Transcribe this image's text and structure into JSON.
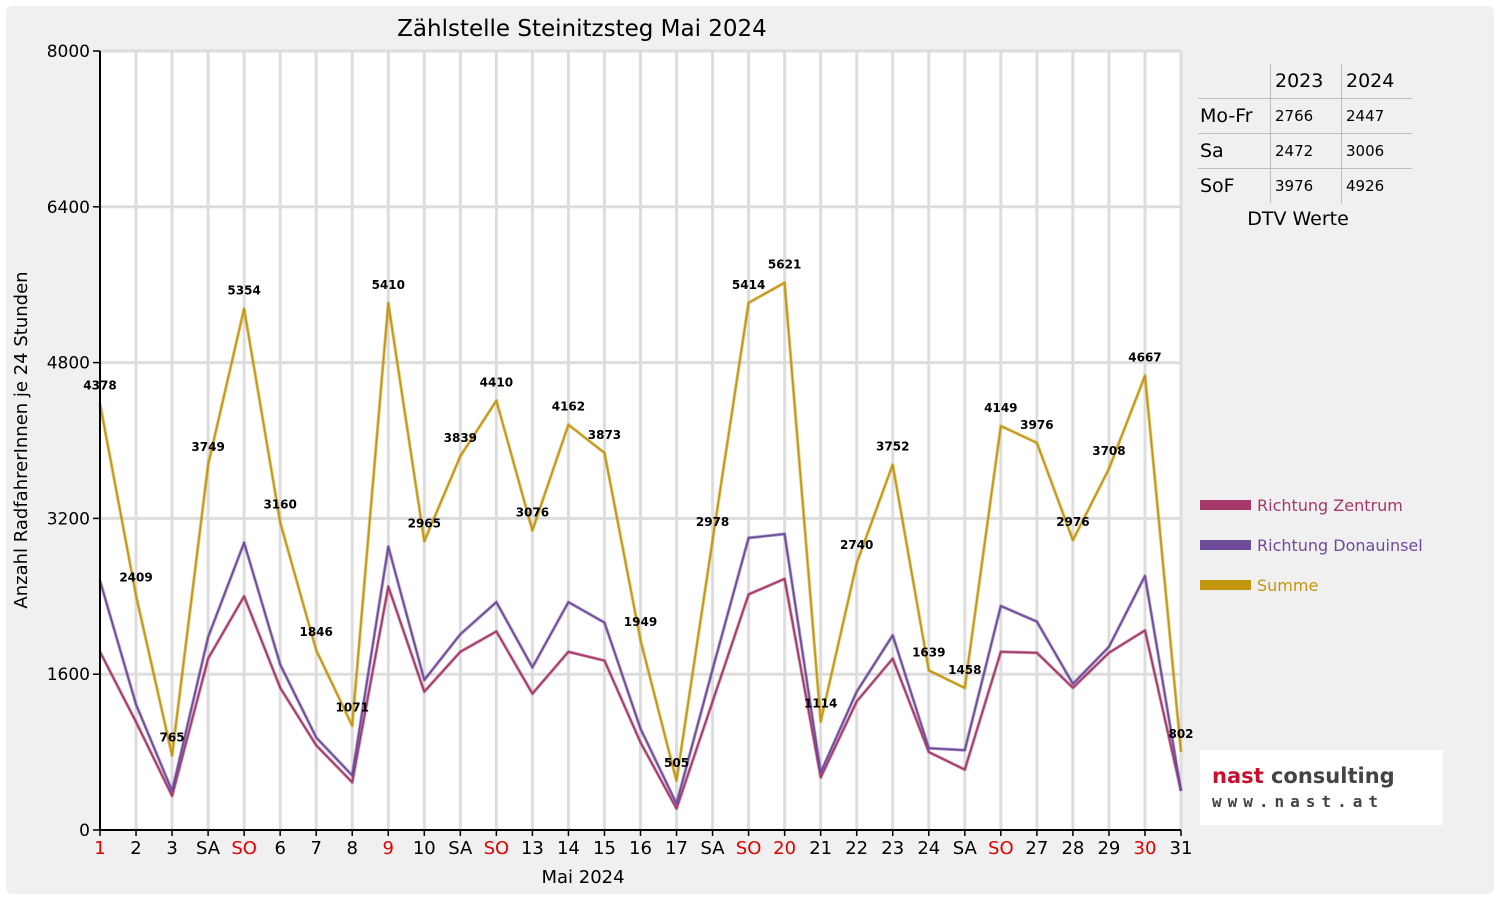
{
  "chart_data": {
    "type": "line",
    "title": "Zählstelle Steinitzsteg Mai 2024",
    "xlabel": "Mai 2024",
    "ylabel": "Anzahl RadfahrerInnen je 24 Stunden",
    "ylim": [
      0,
      8000
    ],
    "yticks": [
      "0",
      "1600",
      "3200",
      "4800",
      "6400",
      "8000"
    ],
    "grid": true,
    "legend_position": "right",
    "categories": [
      "1",
      "2",
      "3",
      "SA",
      "SO",
      "6",
      "7",
      "8",
      "9",
      "10",
      "SA",
      "SO",
      "13",
      "14",
      "15",
      "16",
      "17",
      "SA",
      "SO",
      "20",
      "21",
      "22",
      "23",
      "24",
      "SA",
      "SO",
      "27",
      "28",
      "29",
      "30",
      "31"
    ],
    "highlighted_categories": [
      0,
      4,
      8,
      11,
      18,
      19,
      25,
      29
    ],
    "series": [
      {
        "name": "Richtung Zentrum",
        "color": "#a4386a",
        "values": [
          1830,
          1110,
          350,
          1760,
          2400,
          1460,
          870,
          490,
          2500,
          1420,
          1830,
          2040,
          1400,
          1830,
          1740,
          900,
          220,
          1320,
          2420,
          2580,
          540,
          1320,
          1760,
          800,
          620,
          1830,
          1820,
          1460,
          1820,
          2050,
          400
        ]
      },
      {
        "name": "Richtung Donauinsel",
        "color": "#6e4a9a",
        "values": [
          2560,
          1290,
          400,
          1980,
          2950,
          1700,
          950,
          560,
          2910,
          1540,
          2010,
          2340,
          1670,
          2340,
          2130,
          1040,
          270,
          1650,
          3000,
          3040,
          590,
          1420,
          2000,
          840,
          820,
          2300,
          2140,
          1500,
          1880,
          2610,
          400
        ]
      },
      {
        "name": "Summe",
        "color": "#c4960e",
        "values": [
          4378,
          2409,
          765,
          3749,
          5354,
          3160,
          1846,
          1071,
          5410,
          2965,
          3839,
          4410,
          3076,
          4162,
          3873,
          1949,
          505,
          2978,
          5414,
          5621,
          1114,
          2740,
          3752,
          1639,
          1458,
          4149,
          3976,
          2976,
          3708,
          4667,
          802
        ],
        "labels": [
          "4378",
          "2409",
          "765",
          "3749",
          "5354",
          "3160",
          "1846",
          "1071",
          "5410",
          "2965",
          "3839",
          "4410",
          "3076",
          "4162",
          "3873",
          "1949",
          "505",
          "2978",
          "5414",
          "5621",
          "1114",
          "2740",
          "3752",
          "1639",
          "1458",
          "4149",
          "3976",
          "2976",
          "3708",
          "4667",
          "802"
        ]
      }
    ]
  },
  "colors": {
    "weekend_red": "#e00000",
    "grid": "#dddddd",
    "frame_bg": "#f0f0f0",
    "logo_red": "#c8102e"
  },
  "stats": {
    "headers": [
      "2023",
      "2024"
    ],
    "rows": [
      {
        "label": "Mo-Fr",
        "v2023": "2766",
        "v2024": "2447"
      },
      {
        "label": "Sa",
        "v2023": "2472",
        "v2024": "3006"
      },
      {
        "label": "SoF",
        "v2023": "3976",
        "v2024": "4926"
      }
    ],
    "caption": "DTV Werte"
  },
  "legend": [
    {
      "label": "Richtung Zentrum",
      "color": "#a4386a"
    },
    {
      "label": "Richtung Donauinsel",
      "color": "#6e4a9a"
    },
    {
      "label": "Summe",
      "color": "#c4960e"
    }
  ],
  "logo": {
    "brand_red": "nast",
    "brand_dark": " consulting",
    "url": "www.nast.at"
  }
}
